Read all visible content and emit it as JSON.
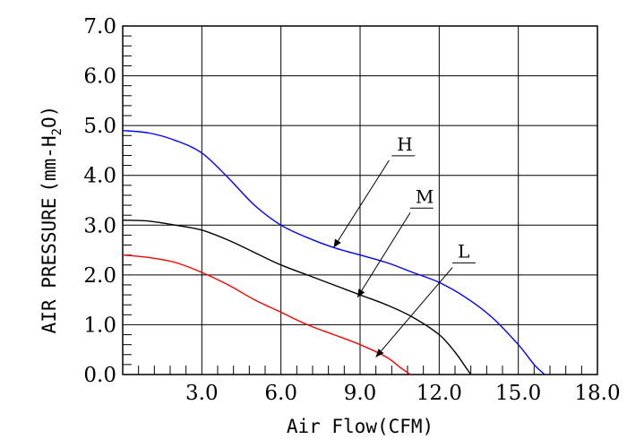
{
  "chart_data": {
    "type": "line",
    "xlabel": "Air Flow(CFM)",
    "ylabel_main": "AIR PRESSURE",
    "ylabel_unit_prefix": "(mm-H",
    "ylabel_unit_sub": "2",
    "ylabel_unit_suffix": "O)",
    "xlim": [
      0,
      18
    ],
    "ylim": [
      0,
      7
    ],
    "x_major_step": 3,
    "x_minor_step": 0.6,
    "y_major_step": 1,
    "y_minor_step": 0.2,
    "grid": true,
    "x_tick_labels": [
      "3.0",
      "6.0",
      "9.0",
      "12.0",
      "15.0",
      "18.0"
    ],
    "y_tick_labels": [
      "0.0",
      "1.0",
      "2.0",
      "3.0",
      "4.0",
      "5.0",
      "6.0",
      "7.0"
    ],
    "series": [
      {
        "name": "H",
        "color": "#0000ff",
        "label_pos": [
          10.4,
          4.5
        ],
        "arrow_from": [
          10.1,
          4.3
        ],
        "arrow_to": [
          8.0,
          2.55
        ],
        "points": [
          [
            0,
            4.9
          ],
          [
            1.0,
            4.85
          ],
          [
            2.0,
            4.7
          ],
          [
            3.0,
            4.45
          ],
          [
            4.0,
            3.95
          ],
          [
            5.0,
            3.4
          ],
          [
            6.0,
            3.0
          ],
          [
            7.0,
            2.75
          ],
          [
            8.0,
            2.55
          ],
          [
            9.0,
            2.4
          ],
          [
            10.0,
            2.25
          ],
          [
            11.0,
            2.05
          ],
          [
            12.0,
            1.85
          ],
          [
            13.0,
            1.55
          ],
          [
            14.0,
            1.15
          ],
          [
            15.0,
            0.6
          ],
          [
            15.6,
            0.2
          ],
          [
            16.0,
            0
          ]
        ]
      },
      {
        "name": "M",
        "color": "#000000",
        "label_pos": [
          11.1,
          3.45
        ],
        "arrow_from": [
          10.9,
          3.25
        ],
        "arrow_to": [
          8.9,
          1.55
        ],
        "points": [
          [
            0,
            3.1
          ],
          [
            1.0,
            3.08
          ],
          [
            2.0,
            3.0
          ],
          [
            3.0,
            2.9
          ],
          [
            4.0,
            2.7
          ],
          [
            5.0,
            2.45
          ],
          [
            6.0,
            2.2
          ],
          [
            7.0,
            2.0
          ],
          [
            8.0,
            1.8
          ],
          [
            9.0,
            1.6
          ],
          [
            10.0,
            1.4
          ],
          [
            11.0,
            1.15
          ],
          [
            12.0,
            0.8
          ],
          [
            12.6,
            0.45
          ],
          [
            13.0,
            0.15
          ],
          [
            13.2,
            0
          ]
        ]
      },
      {
        "name": "L",
        "color": "#ff0000",
        "label_pos": [
          12.7,
          2.35
        ],
        "arrow_from": [
          12.5,
          2.15
        ],
        "arrow_to": [
          9.6,
          0.35
        ],
        "points": [
          [
            0,
            2.4
          ],
          [
            1.0,
            2.35
          ],
          [
            2.0,
            2.25
          ],
          [
            3.0,
            2.05
          ],
          [
            4.0,
            1.8
          ],
          [
            5.0,
            1.5
          ],
          [
            6.0,
            1.25
          ],
          [
            7.0,
            1.0
          ],
          [
            8.0,
            0.8
          ],
          [
            9.0,
            0.6
          ],
          [
            10.0,
            0.35
          ],
          [
            10.5,
            0.15
          ],
          [
            10.9,
            0
          ]
        ]
      }
    ]
  }
}
